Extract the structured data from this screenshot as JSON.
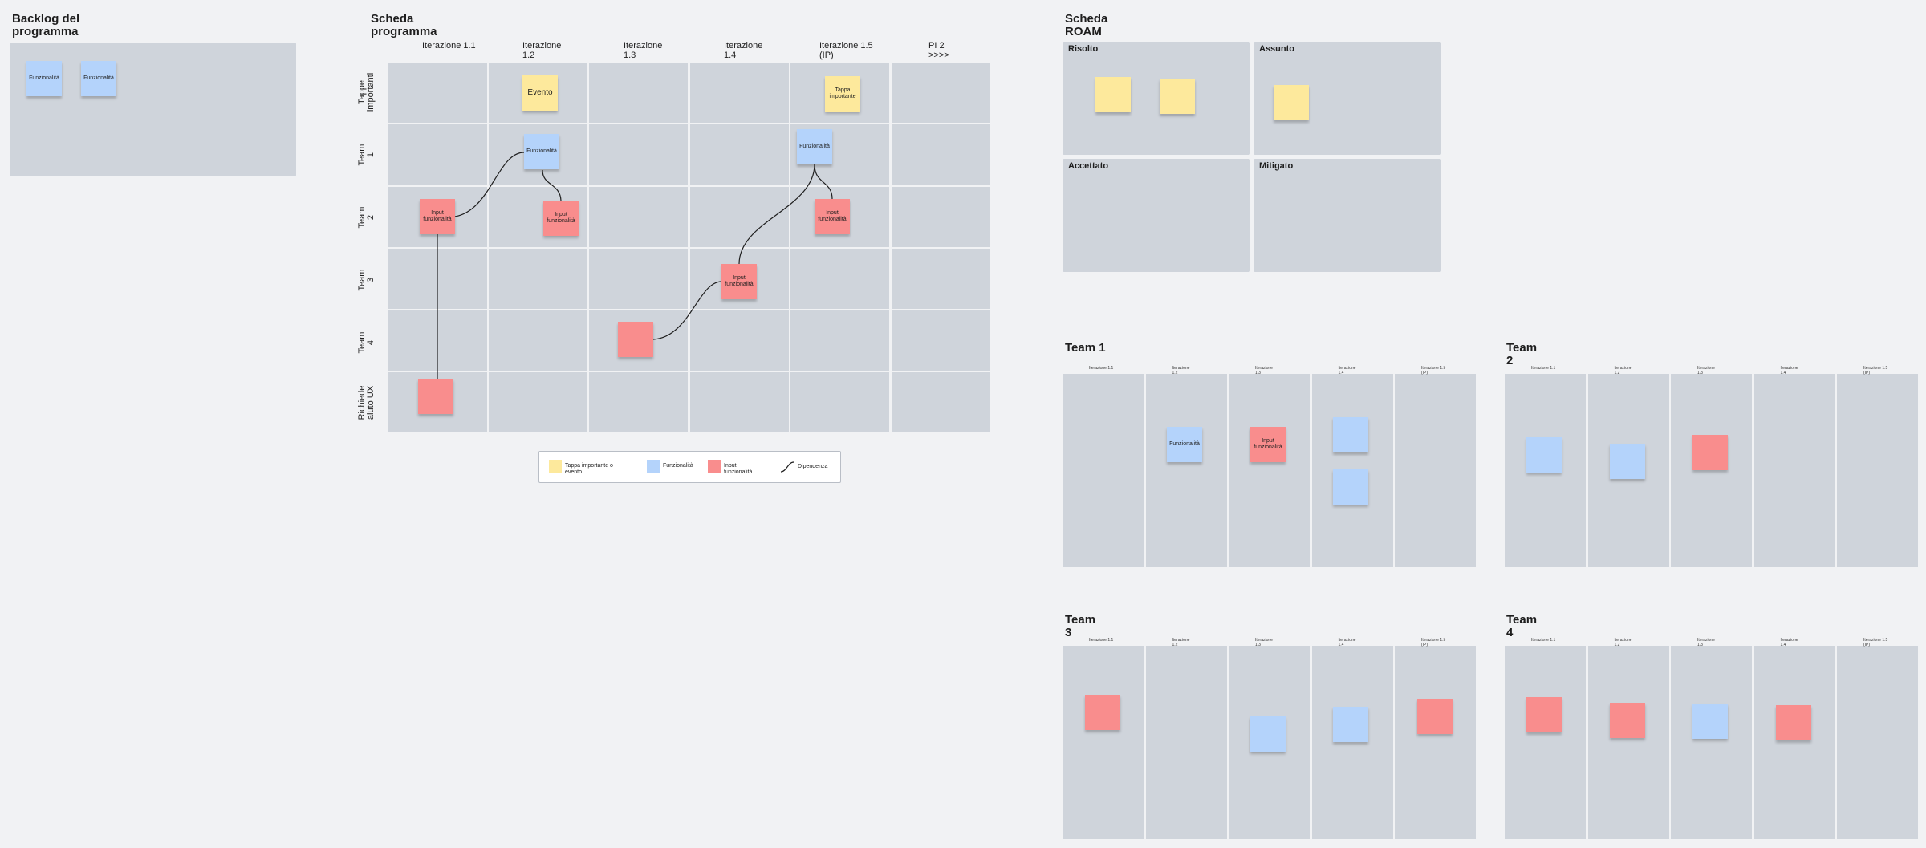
{
  "backlog": {
    "title": "Backlog del\nprogramma",
    "stickies": [
      "Funzionalità",
      "Funzionalità"
    ]
  },
  "program_board": {
    "title": "Scheda\nprogramma",
    "columns": [
      "Iterazione 1.1",
      "Iterazione\n1.2",
      "Iterazione\n1.3",
      "Iterazione\n1.4",
      "Iterazione 1.5\n(IP)",
      "PI 2\n>>>>"
    ],
    "rows": [
      "Tappe\nimportanti",
      "Team\n1",
      "Team\n2",
      "Team\n3",
      "Team\n4",
      "Richiede\naiuto UX"
    ],
    "stickies": {
      "evento": "Evento",
      "tappa": "Tappa\nimportante",
      "feat_t1_c2": "Funzionalità",
      "feat_t1_c5": "Funzionalità",
      "input_t2_c1": "Input\nfunzionalità",
      "input_t2_c2": "Input\nfunzionalità",
      "input_t2_c5": "Input\nfunzionalità",
      "input_t3_c4": "Input\nfunzionalità",
      "blank_t4_c3": "",
      "blank_ux_c1": ""
    }
  },
  "legend": {
    "milestone": "Tappa importante o\nevento",
    "feature": "Funzionalità",
    "input": "Input\nfunzionalità",
    "dependency": "Dipendenza"
  },
  "roam": {
    "title": "Scheda\nROAM",
    "quadrants": [
      "Risolto",
      "Assunto",
      "Accettato",
      "Mitigato"
    ]
  },
  "teams": [
    {
      "title": "Team 1",
      "columns": [
        "Iterazione 1.1",
        "Iterazione\n1.2",
        "Iterazione\n1.3",
        "Iterazione\n1.4",
        "Iterazione 1.5\n(IP)"
      ],
      "stickies": {
        "feat": "Funzionalità",
        "input": "Input\nfunzionalità"
      }
    },
    {
      "title": "Team\n2",
      "columns": [
        "Iterazione 1.1",
        "Iterazione\n1.2",
        "Iterazione\n1.3",
        "Iterazione\n1.4",
        "Iterazione 1.5\n(IP)"
      ]
    },
    {
      "title": "Team\n3",
      "columns": [
        "Iterazione 1.1",
        "Iterazione\n1.2",
        "Iterazione\n1.3",
        "Iterazione\n1.4",
        "Iterazione 1.5\n(IP)"
      ]
    },
    {
      "title": "Team\n4",
      "columns": [
        "Iterazione 1.1",
        "Iterazione\n1.2",
        "Iterazione\n1.3",
        "Iterazione\n1.4",
        "Iterazione 1.5\n(IP)"
      ]
    }
  ],
  "colors": {
    "milestone": "#fde99c",
    "feature": "#b4d3fb",
    "input": "#f98d8d",
    "panel": "#cfd4db",
    "canvas": "#f1f2f4"
  }
}
